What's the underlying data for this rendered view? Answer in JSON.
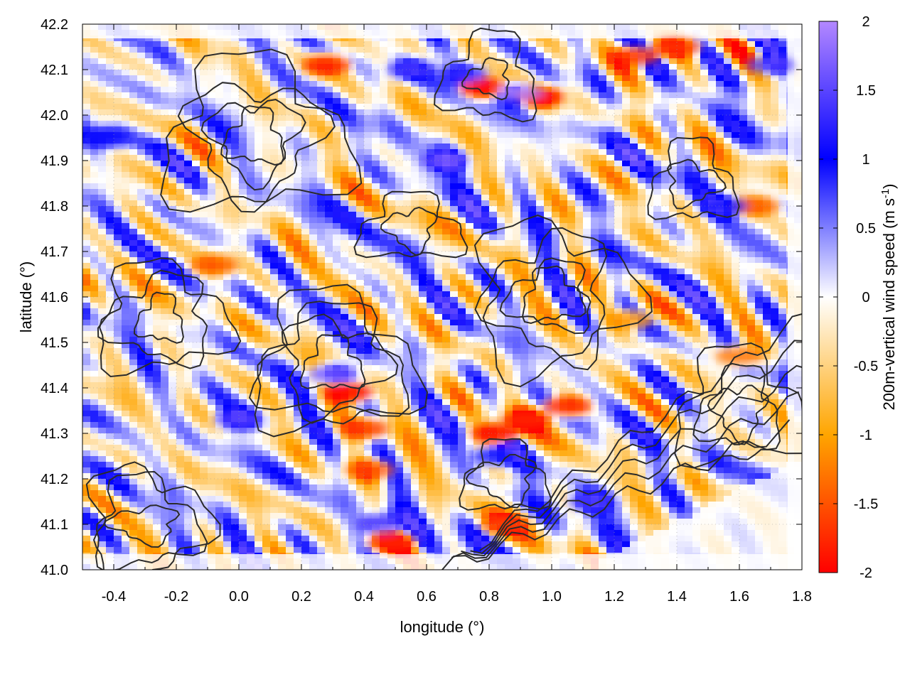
{
  "chart_data": {
    "type": "heatmap",
    "title": "",
    "xlabel": "longitude (°)",
    "ylabel": "latitude (°)",
    "colorbar_label": "200m-vertical wind speed (m s",
    "colorbar_label_sup": "-1",
    "colorbar_label_end": ")",
    "xlim": [
      -0.5,
      1.8
    ],
    "ylim": [
      41.0,
      42.2
    ],
    "zlim": [
      -2,
      2
    ],
    "x_ticks": [
      -0.4,
      -0.2,
      0.0,
      0.2,
      0.4,
      0.6,
      0.8,
      1.0,
      1.2,
      1.4,
      1.6,
      1.8
    ],
    "x_tick_labels": [
      "-0.4",
      "-0.2",
      "0.0",
      "0.2",
      "0.4",
      "0.6",
      "0.8",
      "1.0",
      "1.2",
      "1.4",
      "1.6",
      "1.8"
    ],
    "y_ticks": [
      41.0,
      41.1,
      41.2,
      41.3,
      41.4,
      41.5,
      41.6,
      41.7,
      41.8,
      41.9,
      42.0,
      42.1,
      42.2
    ],
    "y_tick_labels": [
      "41.0",
      "41.1",
      "41.2",
      "41.3",
      "41.4",
      "41.5",
      "41.6",
      "41.7",
      "41.8",
      "41.9",
      "42.0",
      "42.1",
      "42.2"
    ],
    "colorbar_ticks": [
      2,
      1.5,
      1,
      0.5,
      0,
      -0.5,
      -1,
      -1.5,
      -2
    ],
    "colorbar_tick_labels": [
      "2",
      "1.5",
      "1",
      "0.5",
      "0",
      "-0.5",
      "-1",
      "-1.5",
      "-2"
    ],
    "colormap": [
      {
        "value": -2,
        "color": "#ff0000"
      },
      {
        "value": -1,
        "color": "#ffa500"
      },
      {
        "value": 0,
        "color": "#ffffff"
      },
      {
        "value": 1,
        "color": "#0000ff"
      },
      {
        "value": 2,
        "color": "#b388ff"
      }
    ],
    "grid": true,
    "hotspots": [
      {
        "x": 0.78,
        "y": 42.06,
        "v": -2.0
      },
      {
        "x": 0.96,
        "y": 42.04,
        "v": -1.8
      },
      {
        "x": 0.28,
        "y": 42.11,
        "v": -1.6
      },
      {
        "x": 1.27,
        "y": 42.13,
        "v": -1.6
      },
      {
        "x": 1.4,
        "y": 42.15,
        "v": -1.5
      },
      {
        "x": 0.82,
        "y": 41.3,
        "v": -2.0
      },
      {
        "x": 0.92,
        "y": 41.33,
        "v": -1.6
      },
      {
        "x": 1.05,
        "y": 41.36,
        "v": -1.7
      },
      {
        "x": 0.35,
        "y": 41.39,
        "v": -1.8
      },
      {
        "x": 0.4,
        "y": 41.31,
        "v": -1.5
      },
      {
        "x": 0.42,
        "y": 41.22,
        "v": -1.4
      },
      {
        "x": 0.49,
        "y": 41.06,
        "v": -1.6
      },
      {
        "x": 0.85,
        "y": 41.1,
        "v": -1.4
      },
      {
        "x": -0.08,
        "y": 41.67,
        "v": -1.3
      },
      {
        "x": 1.65,
        "y": 41.8,
        "v": -1.3
      },
      {
        "x": 1.6,
        "y": 41.47,
        "v": -1.2
      },
      {
        "x": 1.25,
        "y": 41.55,
        "v": -1.0
      },
      {
        "x": 0.9,
        "y": 42.05,
        "v": 1.9
      },
      {
        "x": 0.72,
        "y": 42.09,
        "v": 1.2
      },
      {
        "x": 0.55,
        "y": 42.1,
        "v": 1.2
      },
      {
        "x": 1.7,
        "y": 42.11,
        "v": 1.3
      },
      {
        "x": 0.3,
        "y": 41.43,
        "v": 1.5
      },
      {
        "x": 0.0,
        "y": 41.33,
        "v": 1.3
      },
      {
        "x": 0.66,
        "y": 41.9,
        "v": 1.4
      },
      {
        "x": -0.42,
        "y": 41.95,
        "v": 1.0
      },
      {
        "x": 0.45,
        "y": 41.1,
        "v": 1.3
      },
      {
        "x": 0.82,
        "y": 41.25,
        "v": 1.0
      },
      {
        "x": 1.55,
        "y": 41.8,
        "v": 1.0
      },
      {
        "x": 1.13,
        "y": 41.15,
        "v": 1.2
      }
    ]
  }
}
